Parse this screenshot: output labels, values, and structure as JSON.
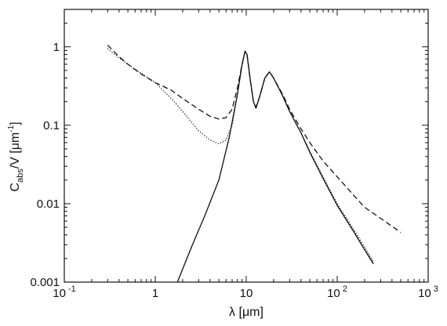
{
  "chart_data": {
    "type": "line",
    "x_scale": "log",
    "y_scale": "log",
    "xlim": [
      0.1,
      1000
    ],
    "ylim": [
      0.001,
      3
    ],
    "grid": false,
    "xlabel": "λ  [μm]",
    "ylabel_main": "C",
    "ylabel_sub": "abs",
    "ylabel_rest": "/V  [μm",
    "ylabel_sup": "-1",
    "ylabel_end": "]",
    "x_ticks": [
      {
        "value": 0.1,
        "base": "10",
        "exp": "-1"
      },
      {
        "value": 1,
        "base": "1",
        "exp": ""
      },
      {
        "value": 10,
        "base": "10",
        "exp": ""
      },
      {
        "value": 100,
        "base": "10",
        "exp": "2"
      },
      {
        "value": 1000,
        "base": "10",
        "exp": "3"
      }
    ],
    "y_ticks": [
      {
        "value": 0.001,
        "label": "0.001"
      },
      {
        "value": 0.01,
        "label": "0.01"
      },
      {
        "value": 0.1,
        "label": "0.1"
      },
      {
        "value": 1,
        "label": "1"
      }
    ],
    "series": [
      {
        "style": "solid",
        "x": [
          1.75,
          2.5,
          3.5,
          5,
          6.5,
          8,
          9,
          9.7,
          10.2,
          11,
          12,
          12.8,
          14,
          16,
          18,
          20,
          25,
          30,
          40,
          50,
          70,
          100,
          150,
          200,
          250
        ],
        "y": [
          0.001,
          0.0028,
          0.007,
          0.02,
          0.07,
          0.25,
          0.6,
          0.88,
          0.8,
          0.4,
          0.2,
          0.165,
          0.23,
          0.4,
          0.48,
          0.4,
          0.24,
          0.15,
          0.08,
          0.045,
          0.021,
          0.0095,
          0.0045,
          0.0026,
          0.0017
        ]
      },
      {
        "style": "dotted",
        "x": [
          0.3,
          0.4,
          0.5,
          0.7,
          1,
          1.5,
          2,
          3,
          4,
          5,
          6,
          7,
          8,
          9,
          9.7,
          10.2,
          11,
          12,
          12.8,
          14,
          16,
          18,
          20,
          25,
          30,
          40,
          50,
          70,
          100,
          150,
          200,
          250
        ],
        "y": [
          0.95,
          0.72,
          0.6,
          0.46,
          0.35,
          0.22,
          0.15,
          0.085,
          0.065,
          0.058,
          0.065,
          0.1,
          0.25,
          0.58,
          0.88,
          0.8,
          0.4,
          0.2,
          0.165,
          0.23,
          0.4,
          0.48,
          0.4,
          0.24,
          0.15,
          0.08,
          0.047,
          0.022,
          0.01,
          0.0048,
          0.0028,
          0.0018
        ]
      },
      {
        "style": "dashed",
        "x": [
          0.3,
          0.4,
          0.5,
          0.7,
          1,
          1.5,
          2,
          3,
          4,
          5,
          6,
          7,
          8,
          9,
          9.7,
          10.2,
          11,
          12,
          12.8,
          14,
          16,
          18,
          20,
          25,
          30,
          40,
          50,
          70,
          100,
          150,
          200,
          300,
          500
        ],
        "y": [
          1.05,
          0.75,
          0.6,
          0.45,
          0.35,
          0.28,
          0.22,
          0.16,
          0.13,
          0.12,
          0.125,
          0.16,
          0.3,
          0.6,
          0.88,
          0.8,
          0.4,
          0.2,
          0.17,
          0.23,
          0.4,
          0.48,
          0.4,
          0.25,
          0.16,
          0.09,
          0.06,
          0.035,
          0.022,
          0.013,
          0.009,
          0.0065,
          0.0043
        ]
      }
    ]
  }
}
